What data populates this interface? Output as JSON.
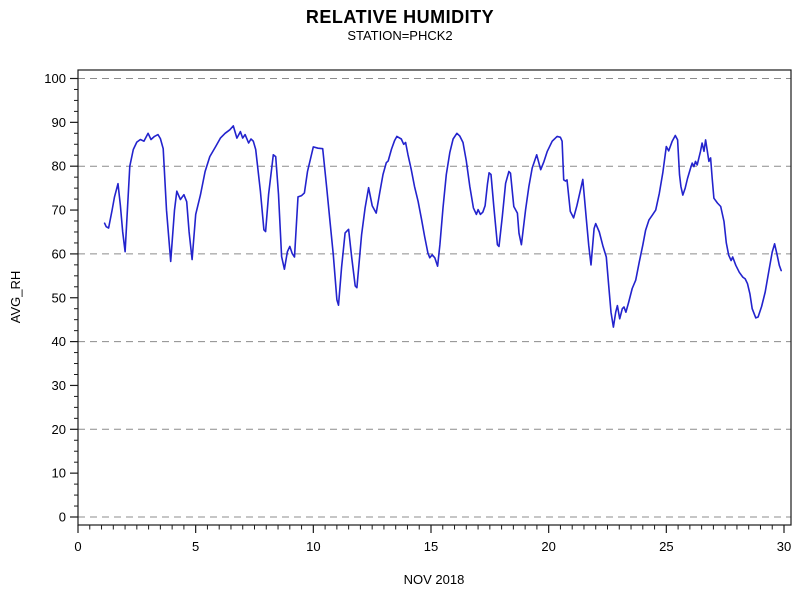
{
  "header": {
    "title": "RELATIVE HUMIDITY",
    "subtitle": "STATION=PHCK2"
  },
  "chart_data": {
    "type": "line",
    "title": "RELATIVE HUMIDITY",
    "subtitle": "STATION=PHCK2",
    "xlabel": "NOV 2018",
    "ylabel": "AVG_RH",
    "xlim": [
      0,
      30
    ],
    "ylim": [
      0,
      100
    ],
    "x_major_ticks": [
      0,
      5,
      10,
      15,
      20,
      25,
      30
    ],
    "x_minor_step": 0.5,
    "y_major_ticks": [
      0,
      10,
      20,
      30,
      40,
      50,
      60,
      70,
      80,
      90,
      100
    ],
    "y_minor_step": 2.5,
    "gridlines_y": [
      0,
      20,
      40,
      60,
      80,
      100
    ],
    "grid_style": "dashed",
    "legend": "none",
    "line_color": "#2323cd",
    "grid_color": "#8c8c8c",
    "axis_color": "#1a1a1a",
    "series": [
      {
        "name": "AVG_RH",
        "points": [
          [
            1.13,
            67.0
          ],
          [
            1.2,
            66.2
          ],
          [
            1.3,
            65.9
          ],
          [
            1.45,
            70.0
          ],
          [
            1.55,
            73.0
          ],
          [
            1.7,
            76.0
          ],
          [
            1.8,
            71.0
          ],
          [
            1.9,
            65.0
          ],
          [
            2.0,
            60.5
          ],
          [
            2.1,
            70.0
          ],
          [
            2.2,
            80.0
          ],
          [
            2.35,
            83.8
          ],
          [
            2.5,
            85.5
          ],
          [
            2.65,
            86.1
          ],
          [
            2.8,
            85.7
          ],
          [
            2.98,
            87.5
          ],
          [
            3.1,
            86.1
          ],
          [
            3.25,
            86.8
          ],
          [
            3.4,
            87.2
          ],
          [
            3.5,
            86.3
          ],
          [
            3.62,
            84.0
          ],
          [
            3.76,
            70.0
          ],
          [
            3.94,
            58.3
          ],
          [
            4.1,
            70.0
          ],
          [
            4.2,
            74.3
          ],
          [
            4.35,
            72.4
          ],
          [
            4.5,
            73.5
          ],
          [
            4.62,
            71.9
          ],
          [
            4.72,
            65.0
          ],
          [
            4.85,
            58.7
          ],
          [
            5.0,
            69.0
          ],
          [
            5.2,
            73.4
          ],
          [
            5.4,
            78.8
          ],
          [
            5.6,
            82.2
          ],
          [
            5.85,
            84.5
          ],
          [
            6.05,
            86.4
          ],
          [
            6.25,
            87.5
          ],
          [
            6.45,
            88.3
          ],
          [
            6.6,
            89.2
          ],
          [
            6.75,
            86.4
          ],
          [
            6.9,
            87.9
          ],
          [
            7.0,
            86.4
          ],
          [
            7.1,
            87.2
          ],
          [
            7.25,
            85.3
          ],
          [
            7.35,
            86.2
          ],
          [
            7.45,
            85.7
          ],
          [
            7.55,
            83.8
          ],
          [
            7.75,
            74.3
          ],
          [
            7.9,
            65.5
          ],
          [
            7.97,
            65.1
          ],
          [
            8.1,
            73.6
          ],
          [
            8.3,
            82.6
          ],
          [
            8.4,
            82.2
          ],
          [
            8.52,
            73.6
          ],
          [
            8.65,
            59.4
          ],
          [
            8.77,
            56.5
          ],
          [
            8.9,
            60.5
          ],
          [
            9.0,
            61.7
          ],
          [
            9.1,
            60.1
          ],
          [
            9.2,
            59.3
          ],
          [
            9.35,
            73.0
          ],
          [
            9.5,
            73.3
          ],
          [
            9.62,
            73.9
          ],
          [
            9.75,
            78.8
          ],
          [
            10.0,
            84.4
          ],
          [
            10.2,
            84.1
          ],
          [
            10.4,
            84.0
          ],
          [
            10.57,
            75.1
          ],
          [
            10.71,
            67.4
          ],
          [
            10.85,
            59.8
          ],
          [
            11.0,
            49.5
          ],
          [
            11.07,
            48.3
          ],
          [
            11.2,
            57.0
          ],
          [
            11.35,
            64.8
          ],
          [
            11.5,
            65.6
          ],
          [
            11.63,
            59.2
          ],
          [
            11.78,
            52.7
          ],
          [
            11.85,
            52.3
          ],
          [
            12.05,
            64.4
          ],
          [
            12.2,
            70.5
          ],
          [
            12.35,
            75.1
          ],
          [
            12.5,
            71.0
          ],
          [
            12.67,
            69.3
          ],
          [
            12.82,
            73.9
          ],
          [
            12.96,
            78.1
          ],
          [
            13.1,
            80.8
          ],
          [
            13.18,
            81.2
          ],
          [
            13.32,
            83.9
          ],
          [
            13.45,
            85.8
          ],
          [
            13.55,
            86.8
          ],
          [
            13.74,
            86.2
          ],
          [
            13.84,
            85.0
          ],
          [
            13.92,
            85.4
          ],
          [
            14.02,
            82.7
          ],
          [
            14.16,
            79.3
          ],
          [
            14.3,
            75.4
          ],
          [
            14.45,
            72.0
          ],
          [
            14.6,
            67.8
          ],
          [
            14.73,
            64.0
          ],
          [
            14.87,
            60.2
          ],
          [
            14.95,
            59.1
          ],
          [
            15.05,
            59.8
          ],
          [
            15.16,
            59.1
          ],
          [
            15.28,
            57.2
          ],
          [
            15.38,
            62.1
          ],
          [
            15.51,
            70.5
          ],
          [
            15.65,
            78.1
          ],
          [
            15.8,
            83.1
          ],
          [
            15.94,
            86.2
          ],
          [
            16.1,
            87.5
          ],
          [
            16.22,
            86.9
          ],
          [
            16.36,
            85.4
          ],
          [
            16.5,
            81.2
          ],
          [
            16.65,
            75.4
          ],
          [
            16.8,
            70.5
          ],
          [
            16.93,
            69.0
          ],
          [
            17.0,
            70.1
          ],
          [
            17.1,
            69.0
          ],
          [
            17.2,
            69.5
          ],
          [
            17.3,
            71.0
          ],
          [
            17.4,
            76.0
          ],
          [
            17.47,
            78.5
          ],
          [
            17.55,
            78.1
          ],
          [
            17.67,
            70.8
          ],
          [
            17.82,
            62.1
          ],
          [
            17.89,
            61.7
          ],
          [
            18.03,
            68.5
          ],
          [
            18.17,
            76.1
          ],
          [
            18.31,
            78.8
          ],
          [
            18.38,
            78.4
          ],
          [
            18.52,
            70.8
          ],
          [
            18.67,
            69.3
          ],
          [
            18.74,
            64.7
          ],
          [
            18.84,
            62.1
          ],
          [
            19.02,
            70.1
          ],
          [
            19.16,
            75.4
          ],
          [
            19.3,
            79.6
          ],
          [
            19.49,
            82.6
          ],
          [
            19.66,
            79.2
          ],
          [
            19.8,
            81.1
          ],
          [
            19.94,
            83.4
          ],
          [
            20.15,
            85.7
          ],
          [
            20.36,
            86.8
          ],
          [
            20.5,
            86.6
          ],
          [
            20.57,
            85.7
          ],
          [
            20.64,
            76.9
          ],
          [
            20.72,
            76.6
          ],
          [
            20.78,
            76.9
          ],
          [
            20.92,
            69.7
          ],
          [
            21.06,
            68.2
          ],
          [
            21.2,
            71.0
          ],
          [
            21.35,
            74.5
          ],
          [
            21.45,
            77.0
          ],
          [
            21.6,
            68.0
          ],
          [
            21.7,
            62.0
          ],
          [
            21.8,
            57.5
          ],
          [
            21.93,
            65.8
          ],
          [
            22.0,
            66.9
          ],
          [
            22.15,
            65.0
          ],
          [
            22.3,
            61.9
          ],
          [
            22.45,
            59.3
          ],
          [
            22.55,
            52.8
          ],
          [
            22.65,
            46.7
          ],
          [
            22.75,
            43.3
          ],
          [
            22.85,
            46.7
          ],
          [
            22.92,
            48.2
          ],
          [
            23.02,
            45.2
          ],
          [
            23.13,
            47.5
          ],
          [
            23.2,
            47.9
          ],
          [
            23.28,
            46.7
          ],
          [
            23.4,
            49.0
          ],
          [
            23.55,
            52.1
          ],
          [
            23.7,
            54.0
          ],
          [
            23.85,
            58.2
          ],
          [
            24.0,
            62.0
          ],
          [
            24.12,
            65.4
          ],
          [
            24.26,
            67.7
          ],
          [
            24.4,
            68.8
          ],
          [
            24.55,
            70.0
          ],
          [
            24.7,
            73.8
          ],
          [
            24.85,
            78.5
          ],
          [
            25.0,
            84.5
          ],
          [
            25.1,
            83.5
          ],
          [
            25.25,
            85.7
          ],
          [
            25.38,
            87.0
          ],
          [
            25.48,
            86.0
          ],
          [
            25.56,
            78.1
          ],
          [
            25.62,
            75.4
          ],
          [
            25.7,
            73.4
          ],
          [
            25.8,
            75.0
          ],
          [
            25.9,
            77.2
          ],
          [
            26.03,
            79.6
          ],
          [
            26.1,
            80.7
          ],
          [
            26.17,
            79.9
          ],
          [
            26.24,
            81.1
          ],
          [
            26.31,
            80.3
          ],
          [
            26.45,
            83.4
          ],
          [
            26.52,
            85.3
          ],
          [
            26.6,
            83.4
          ],
          [
            26.67,
            86.0
          ],
          [
            26.81,
            81.1
          ],
          [
            26.88,
            81.9
          ],
          [
            26.95,
            77.2
          ],
          [
            27.02,
            72.7
          ],
          [
            27.17,
            71.6
          ],
          [
            27.31,
            70.8
          ],
          [
            27.45,
            67.4
          ],
          [
            27.55,
            62.5
          ],
          [
            27.65,
            59.7
          ],
          [
            27.75,
            58.5
          ],
          [
            27.82,
            59.3
          ],
          [
            27.95,
            57.4
          ],
          [
            28.1,
            55.8
          ],
          [
            28.25,
            54.7
          ],
          [
            28.35,
            54.3
          ],
          [
            28.45,
            53.2
          ],
          [
            28.55,
            50.9
          ],
          [
            28.65,
            47.5
          ],
          [
            28.8,
            45.4
          ],
          [
            28.9,
            45.6
          ],
          [
            29.05,
            48.0
          ],
          [
            29.2,
            51.3
          ],
          [
            29.35,
            55.9
          ],
          [
            29.5,
            60.4
          ],
          [
            29.6,
            62.3
          ],
          [
            29.7,
            60.0
          ],
          [
            29.8,
            57.4
          ],
          [
            29.88,
            56.2
          ]
        ]
      }
    ]
  }
}
